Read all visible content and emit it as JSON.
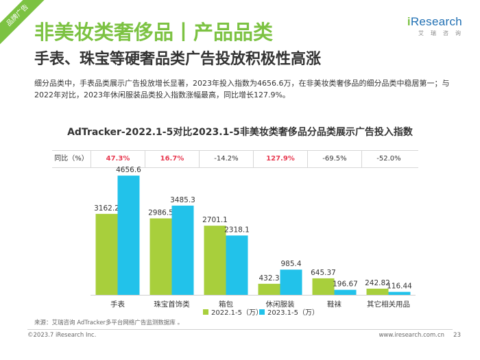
{
  "corner_tag": "品牌广告",
  "logo": {
    "i": "i",
    "word": "Research",
    "sub": "艾瑞咨询"
  },
  "title": "非美妆类奢侈品丨产品品类",
  "subtitle": "手表、珠宝等硬奢品类广告投放积极性高涨",
  "description": "细分品类中，手表品类展示广告投放增长显著，2023年投入指数为4656.6万，在非美妆类奢侈品的细分品类中稳居第一；与2022年对比，2023年休闲服装品类投入指数涨幅最高，同比增长127.9%。",
  "yoy": {
    "label": "同比（%）",
    "values": [
      "47.3%",
      "16.7%",
      "-14.2%",
      "127.9%",
      "-69.5%",
      "-52.0%"
    ],
    "highlight": [
      true,
      true,
      false,
      true,
      false,
      false
    ]
  },
  "colors": {
    "accent": "#7cc242",
    "series_2022": "#a8cf3c",
    "series_2023": "#22c2ea",
    "highlight_red": "#e8384f"
  },
  "chart_data": {
    "type": "bar",
    "title": "AdTracker-2022.1-5对比2023.1-5非美妆类奢侈品分品类展示广告投入指数",
    "categories": [
      "手表",
      "珠宝首饰类",
      "箱包",
      "休闲服装",
      "鞋袜",
      "其它相关用品"
    ],
    "series": [
      {
        "name": "2022.1-5（万）",
        "values": [
          3162.2,
          2986.5,
          2701.1,
          432.3,
          645.37,
          242.82
        ],
        "labels": [
          "3162.2",
          "2986.5",
          "2701.1",
          "432.3",
          "645.37",
          "242.82"
        ]
      },
      {
        "name": "2023.1-5（万）",
        "values": [
          4656.6,
          3485.3,
          2318.1,
          985.4,
          196.67,
          116.44
        ],
        "labels": [
          "4656.6",
          "3485.3",
          "2318.1",
          "985.4",
          "196.67",
          "116.44"
        ]
      }
    ],
    "xlabel": "",
    "ylabel": "",
    "ylim": [
      0,
      4900
    ],
    "grid": false,
    "legend": "bottom"
  },
  "source": "来源：艾瑞咨询 AdTracker多平台网络广告监测数据库 。",
  "footer": {
    "copyright": "©2023.7 iResearch Inc.",
    "site": "www.iresearch.com.cn",
    "page": "23"
  }
}
